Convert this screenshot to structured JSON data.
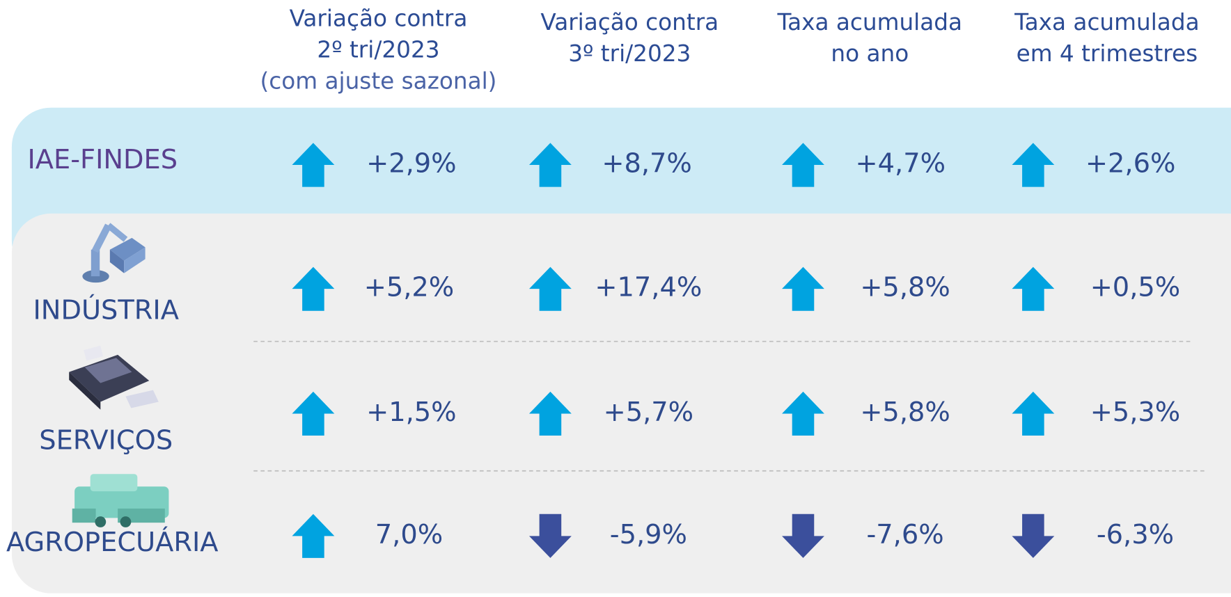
{
  "header": {
    "columns": [
      [
        "Variação contra",
        "2º tri/2023",
        "(com ajuste sazonal)"
      ],
      [
        "Variação contra",
        "3º tri/2023"
      ],
      [
        "Taxa acumulada",
        "no ano"
      ],
      [
        "Taxa acumulada",
        "em 4 trimestres"
      ]
    ]
  },
  "rows": [
    {
      "label": "IAE-FINDES",
      "values": [
        "+2,9%",
        "+8,7%",
        "+4,7%",
        "+2,6%"
      ]
    },
    {
      "label": "INDÚSTRIA",
      "values": [
        "+5,2%",
        "+17,4%",
        "+5,8%",
        "+0,5%"
      ]
    },
    {
      "label": "SERVIÇOS",
      "values": [
        "+1,5%",
        "+5,7%",
        "+5,8%",
        "+5,3%"
      ]
    },
    {
      "label": "AGROPECUÁRIA",
      "values": [
        "7,0%",
        "-5,9%",
        "-7,6%",
        "-6,3%"
      ]
    }
  ]
}
